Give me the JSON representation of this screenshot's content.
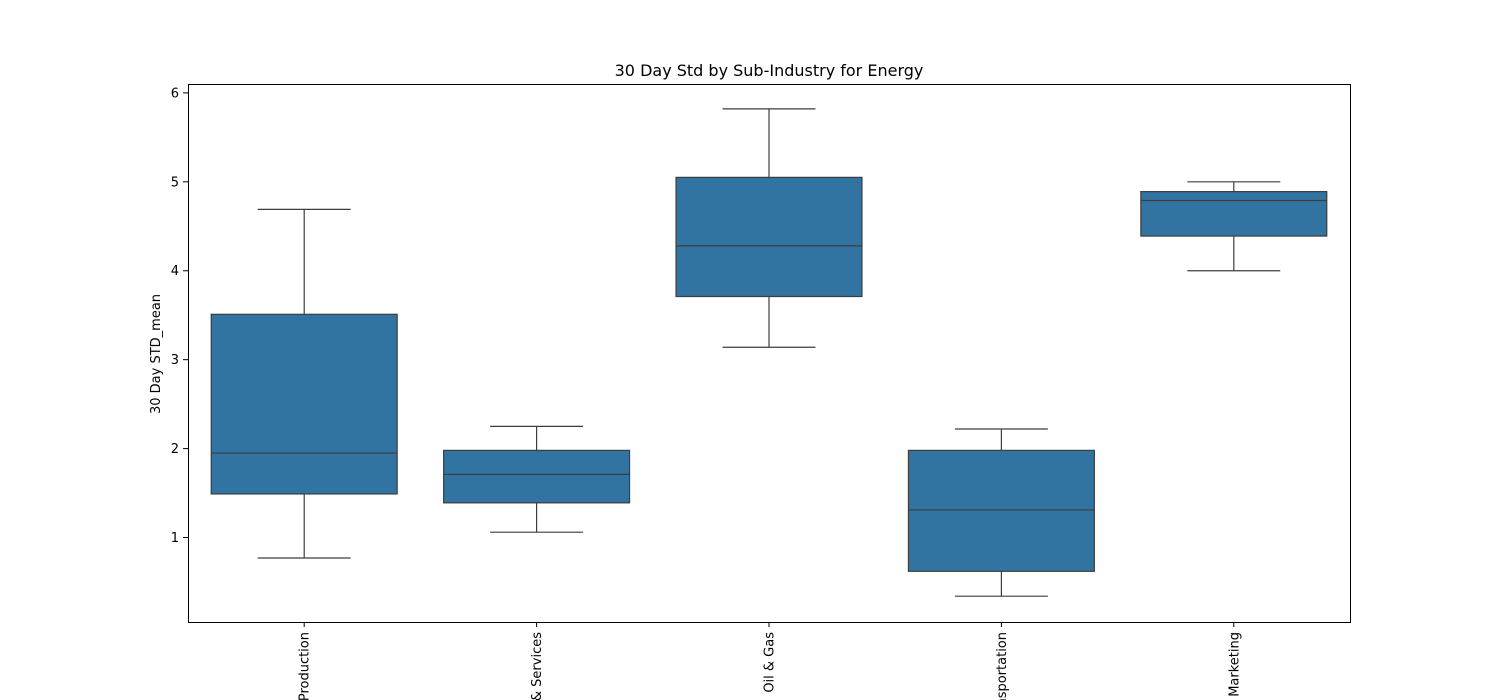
{
  "chart_data": {
    "type": "box",
    "title": "30 Day Std by Sub-Industry for Energy",
    "xlabel": "",
    "ylabel": "30 Day STD_mean",
    "ylim": [
      0.05,
      6.1
    ],
    "yticks": [
      1,
      2,
      3,
      4,
      5,
      6
    ],
    "grid": false,
    "legend": "none",
    "box_color": "#3274a1",
    "line_color": "#3d3d3d",
    "categories": [
      "Production",
      "& Services",
      "Oil & Gas",
      "Transportation",
      "Marketing"
    ],
    "boxes": [
      {
        "category": "Production",
        "whisker_low": 0.77,
        "q1": 1.49,
        "median": 1.95,
        "q3": 3.51,
        "whisker_high": 4.69
      },
      {
        "category": "& Services",
        "whisker_low": 1.06,
        "q1": 1.39,
        "median": 1.71,
        "q3": 1.98,
        "whisker_high": 2.25
      },
      {
        "category": "Oil & Gas",
        "whisker_low": 3.14,
        "q1": 3.71,
        "median": 4.28,
        "q3": 5.05,
        "whisker_high": 5.82
      },
      {
        "category": "Transportation",
        "whisker_low": 0.34,
        "q1": 0.62,
        "median": 1.31,
        "q3": 1.98,
        "whisker_high": 2.22
      },
      {
        "category": "Marketing",
        "whisker_low": 4.0,
        "q1": 4.39,
        "median": 4.79,
        "q3": 4.89,
        "whisker_high": 5.0
      }
    ]
  }
}
